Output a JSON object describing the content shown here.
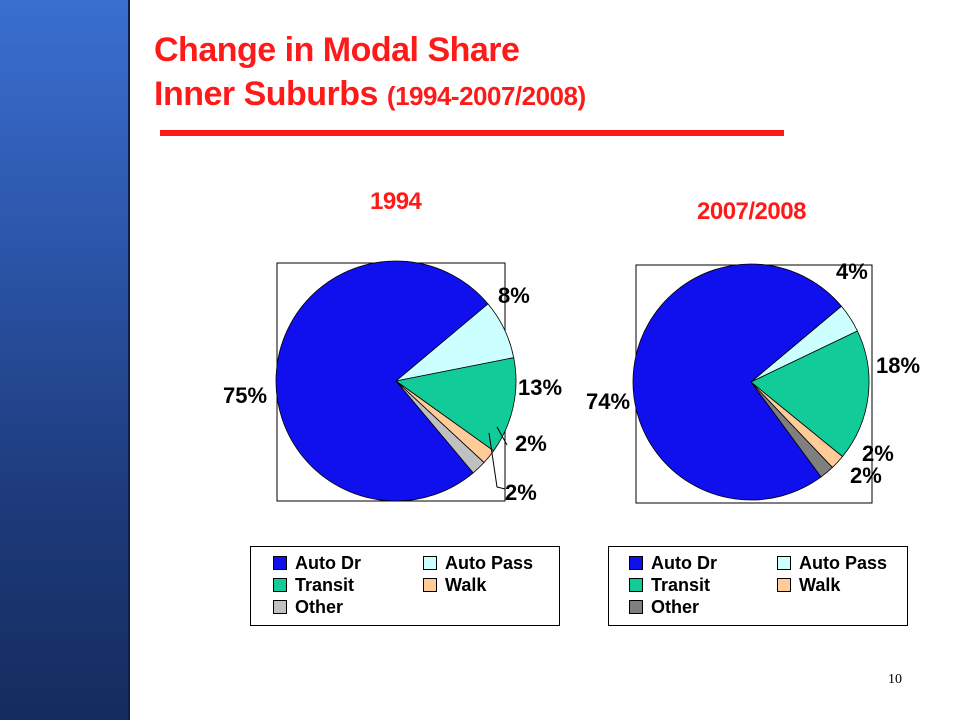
{
  "slide": {
    "title_line1": "Change in Modal Share",
    "title_line2_main": "Inner Suburbs",
    "title_line2_suffix": "(1994-2007/2008)",
    "page_number": "10"
  },
  "colors": {
    "Auto Dr": "#1010ee",
    "Auto Pass": "#ccffff",
    "Transit": "#11cc99",
    "Walk": "#ffcc99",
    "Other_1994": "#c0c0c0",
    "Other_2007": "#7f7f7f"
  },
  "chart_data": [
    {
      "type": "pie",
      "title": "1994",
      "categories": [
        "Auto Dr",
        "Auto Pass",
        "Transit",
        "Walk",
        "Other"
      ],
      "values": [
        75,
        8,
        13,
        2,
        2
      ],
      "labels": [
        "75%",
        "8%",
        "13%",
        "2%",
        "2%"
      ],
      "legend": [
        "Auto Dr",
        "Auto Pass",
        "Transit",
        "Walk",
        "Other"
      ],
      "legend_position": "bottom"
    },
    {
      "type": "pie",
      "title": "2007/2008",
      "categories": [
        "Auto Dr",
        "Auto Pass",
        "Transit",
        "Walk",
        "Other"
      ],
      "values": [
        74,
        4,
        18,
        2,
        2
      ],
      "labels": [
        "74%",
        "4%",
        "18%",
        "2%",
        "2%"
      ],
      "legend": [
        "Auto Dr",
        "Auto Pass",
        "Transit",
        "Walk",
        "Other"
      ],
      "legend_position": "bottom"
    }
  ]
}
